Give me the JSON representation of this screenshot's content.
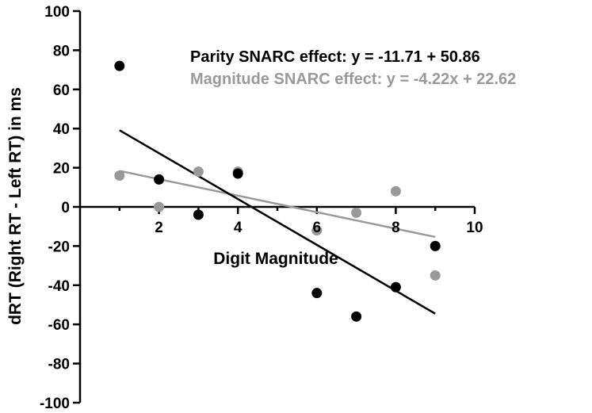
{
  "chart_data": {
    "type": "scatter",
    "xlabel": "Digit Magnitude",
    "ylabel": "dRT (Right RT - Left RT) in ms",
    "xlim": [
      0,
      10
    ],
    "ylim": [
      -100,
      100
    ],
    "x_ticks": [
      2,
      4,
      6,
      8,
      10
    ],
    "y_ticks": [
      -100,
      -80,
      -60,
      -40,
      -20,
      0,
      20,
      40,
      60,
      80,
      100
    ],
    "grid": false,
    "legend_position": "top-right",
    "series": [
      {
        "name": "Parity SNARC effect: y = -11.71 + 50.86",
        "color": "#000000",
        "points": [
          {
            "x": 1,
            "y": 72
          },
          {
            "x": 2,
            "y": 14
          },
          {
            "x": 3,
            "y": -4
          },
          {
            "x": 4,
            "y": 17
          },
          {
            "x": 6,
            "y": -44
          },
          {
            "x": 7,
            "y": -56
          },
          {
            "x": 8,
            "y": -41
          },
          {
            "x": 9,
            "y": -20
          }
        ],
        "fit": {
          "slope": -11.71,
          "intercept": 50.86,
          "x_range": [
            1,
            9
          ]
        }
      },
      {
        "name": "Magnitude SNARC effect: y = -4.22x + 22.62",
        "color": "#999999",
        "points": [
          {
            "x": 1,
            "y": 16
          },
          {
            "x": 2,
            "y": 0
          },
          {
            "x": 3,
            "y": 18
          },
          {
            "x": 4,
            "y": 18
          },
          {
            "x": 6,
            "y": -12
          },
          {
            "x": 7,
            "y": -3
          },
          {
            "x": 8,
            "y": 8
          },
          {
            "x": 9,
            "y": -35
          }
        ],
        "fit": {
          "slope": -4.22,
          "intercept": 22.62,
          "x_range": [
            1,
            9
          ]
        }
      }
    ]
  }
}
